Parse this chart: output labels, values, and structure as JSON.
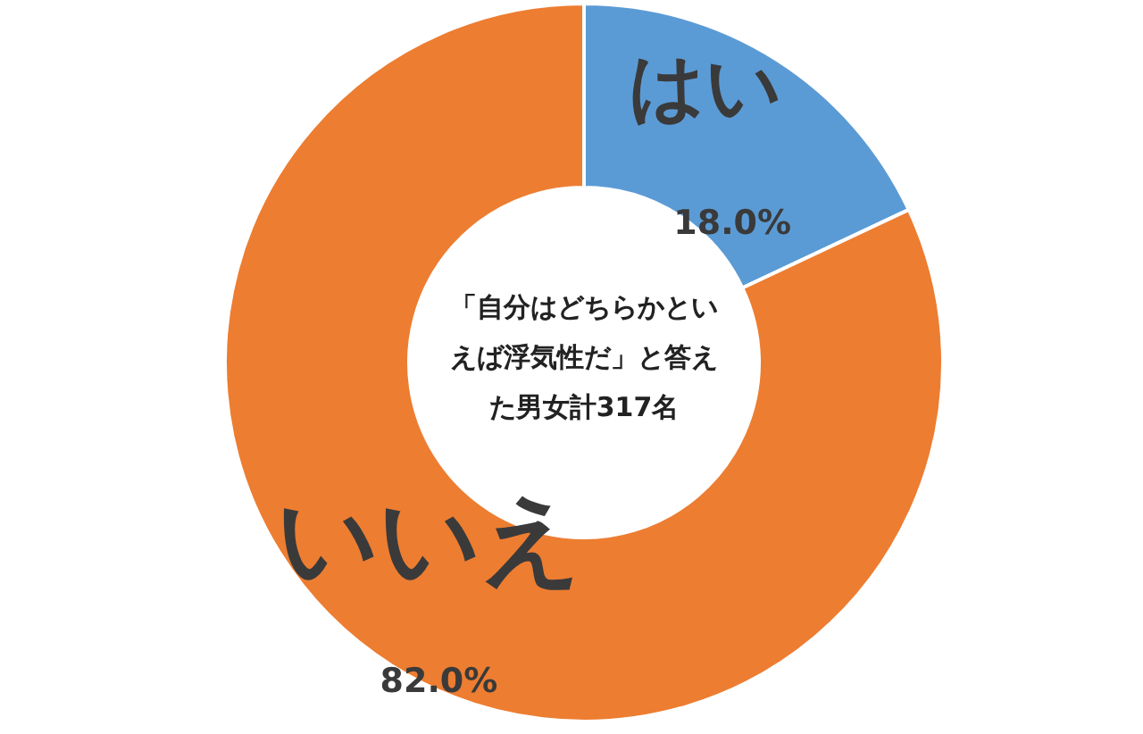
{
  "chart_data": {
    "type": "donut",
    "title": "「自分はどちらかといえば浮気性だ」と答えた男女計317名",
    "categories": [
      "はい",
      "いいえ"
    ],
    "values": [
      18.0,
      82.0
    ],
    "colors": [
      "#5b9bd5",
      "#ed7d31"
    ],
    "value_labels": [
      "18.0%",
      "82.0%"
    ]
  }
}
